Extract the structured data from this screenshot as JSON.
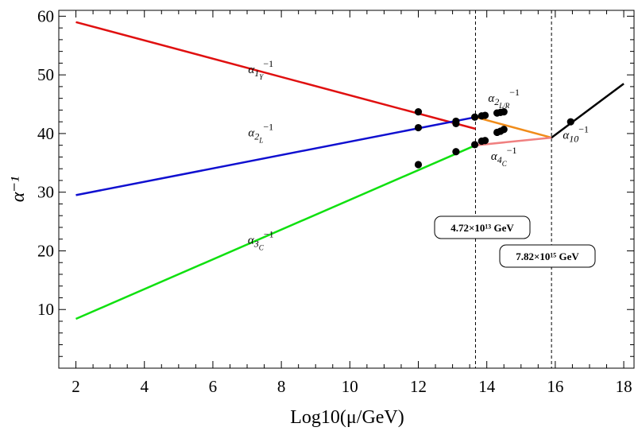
{
  "chart_data": {
    "type": "line",
    "title": "",
    "xlabel": "Log10(μ/GeV)",
    "ylabel": "α⁻¹",
    "xlim": [
      1.5,
      18.3
    ],
    "ylim": [
      0,
      61
    ],
    "xticks": [
      2,
      4,
      6,
      8,
      10,
      12,
      14,
      16,
      18
    ],
    "yticks": [
      10,
      20,
      30,
      40,
      50,
      60
    ],
    "grid": false,
    "series": [
      {
        "name": "α1Y⁻¹",
        "color": "#e01010",
        "x": [
          2,
          13.67
        ],
        "y": [
          59.0,
          40.8
        ]
      },
      {
        "name": "α2L⁻¹",
        "color": "#1010d0",
        "x": [
          2,
          13.67
        ],
        "y": [
          29.5,
          42.8
        ]
      },
      {
        "name": "α3C⁻¹",
        "color": "#10e010",
        "x": [
          2,
          13.67
        ],
        "y": [
          8.4,
          38.0
        ]
      },
      {
        "name": "α2L/R⁻¹",
        "color": "#f08c1a",
        "x": [
          13.67,
          15.89
        ],
        "y": [
          42.8,
          39.3
        ]
      },
      {
        "name": "α4C⁻¹",
        "color": "#f08080",
        "x": [
          13.67,
          15.89
        ],
        "y": [
          38.0,
          39.3
        ]
      },
      {
        "name": "α10⁻¹",
        "color": "#000000",
        "x": [
          15.89,
          18.0
        ],
        "y": [
          39.3,
          48.5
        ]
      }
    ],
    "points": [
      {
        "x": 12.0,
        "y": 43.7
      },
      {
        "x": 12.0,
        "y": 41.0
      },
      {
        "x": 12.0,
        "y": 34.7
      },
      {
        "x": 13.1,
        "y": 42.1
      },
      {
        "x": 13.1,
        "y": 41.7
      },
      {
        "x": 13.1,
        "y": 36.9
      },
      {
        "x": 13.65,
        "y": 42.8
      },
      {
        "x": 13.65,
        "y": 38.1
      },
      {
        "x": 13.85,
        "y": 43.0
      },
      {
        "x": 13.85,
        "y": 38.7
      },
      {
        "x": 13.95,
        "y": 43.1
      },
      {
        "x": 13.95,
        "y": 38.8
      },
      {
        "x": 14.3,
        "y": 43.5
      },
      {
        "x": 14.3,
        "y": 40.2
      },
      {
        "x": 14.4,
        "y": 43.6
      },
      {
        "x": 14.4,
        "y": 40.4
      },
      {
        "x": 14.5,
        "y": 43.7
      },
      {
        "x": 14.5,
        "y": 40.7
      },
      {
        "x": 16.45,
        "y": 42.0
      }
    ],
    "vlines": [
      {
        "x": 13.67,
        "label": "4.72×10¹³ GeV"
      },
      {
        "x": 15.89,
        "label": "7.82×10¹⁵ GeV"
      }
    ],
    "curve_labels": [
      {
        "text": "α1Y⁻¹",
        "base": "α",
        "sub": "1",
        "subsub": "Y",
        "sup": "−1",
        "x": 7.4,
        "y": 50.3
      },
      {
        "text": "α2L⁻¹",
        "base": "α",
        "sub": "2",
        "subsub": "L",
        "sup": "−1",
        "x": 7.4,
        "y": 39.5
      },
      {
        "text": "α3C⁻¹",
        "base": "α",
        "sub": "3",
        "subsub": "C",
        "sup": "−1",
        "x": 7.4,
        "y": 21.2
      },
      {
        "text": "α2L/R⁻¹",
        "base": "α",
        "sub": "2",
        "subsub": "L/R",
        "sup": "−1",
        "x": 14.5,
        "y": 45.4
      },
      {
        "text": "α4C⁻¹",
        "base": "α",
        "sub": "4",
        "subsub": "C",
        "sup": "−1",
        "x": 14.5,
        "y": 35.5
      },
      {
        "text": "α10⁻¹",
        "base": "α",
        "sub": "10",
        "subsub": "",
        "sup": "−1",
        "x": 16.6,
        "y": 39.1
      }
    ]
  }
}
